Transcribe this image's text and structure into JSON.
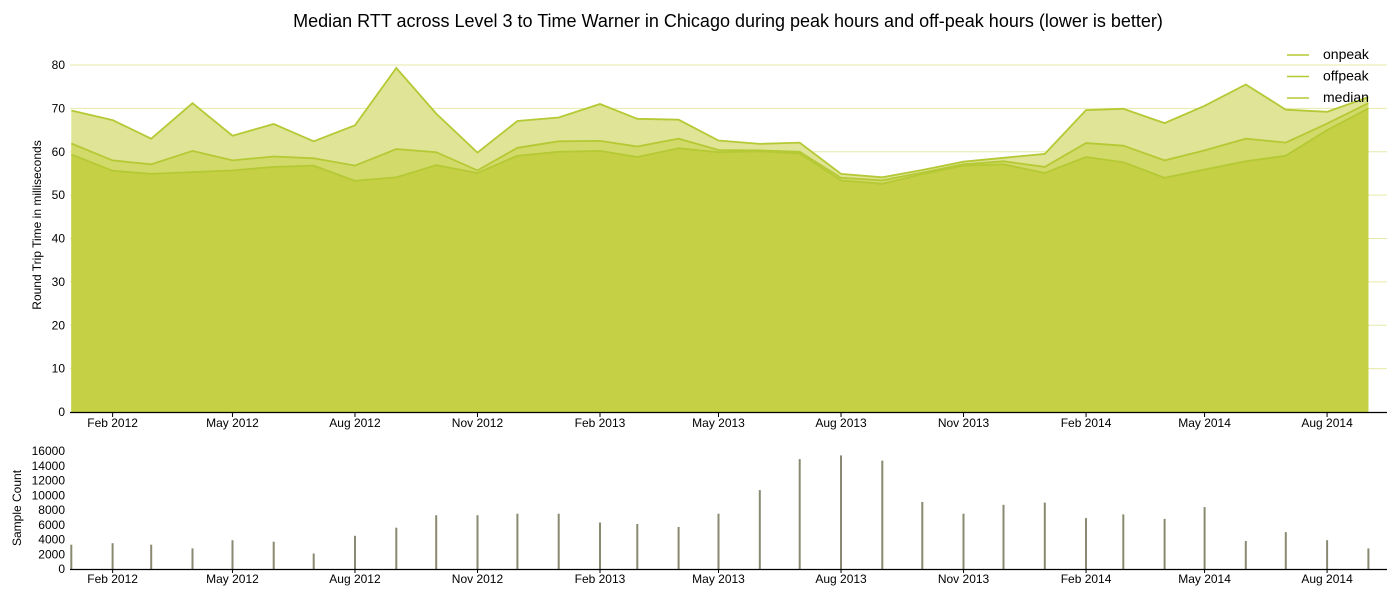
{
  "colors": {
    "onpeak_fill": "#dfe496",
    "offpeak_fill": "#d2da6a",
    "median_fill": "#c5d044",
    "line": "#b5c934",
    "grid": "#e6eaa8",
    "axis": "#000000",
    "bar": "#8a8a72"
  },
  "chart_data": [
    {
      "type": "area",
      "title": "Median RTT across Level 3 to Time Warner in Chicago during peak hours and off-peak hours (lower is better)",
      "ylabel": "Round Trip Time in milliseconds",
      "xlabel": "",
      "ylim": [
        0,
        80
      ],
      "yticks": [
        0,
        10,
        20,
        30,
        40,
        50,
        60,
        70,
        80
      ],
      "xlim": [
        "2011-12-31",
        "2014-09-15"
      ],
      "xticks": [
        {
          "date": "2012-02-01",
          "label": "Feb 2012"
        },
        {
          "date": "2012-05-01",
          "label": "May 2012"
        },
        {
          "date": "2012-08-01",
          "label": "Aug 2012"
        },
        {
          "date": "2012-11-01",
          "label": "Nov 2012"
        },
        {
          "date": "2013-02-01",
          "label": "Feb 2013"
        },
        {
          "date": "2013-05-01",
          "label": "May 2013"
        },
        {
          "date": "2013-08-01",
          "label": "Aug 2013"
        },
        {
          "date": "2013-11-01",
          "label": "Nov 2013"
        },
        {
          "date": "2014-02-01",
          "label": "Feb 2014"
        },
        {
          "date": "2014-05-01",
          "label": "May 2014"
        },
        {
          "date": "2014-08-01",
          "label": "Aug 2014"
        }
      ],
      "grid": true,
      "legend_position": "top-right",
      "x": [
        "2012-01-01",
        "2012-02-01",
        "2012-03-01",
        "2012-04-01",
        "2012-05-01",
        "2012-06-01",
        "2012-07-01",
        "2012-08-01",
        "2012-09-01",
        "2012-10-01",
        "2012-11-01",
        "2012-12-01",
        "2013-01-01",
        "2013-02-01",
        "2013-03-01",
        "2013-04-01",
        "2013-05-01",
        "2013-06-01",
        "2013-07-01",
        "2013-08-01",
        "2013-09-01",
        "2013-10-01",
        "2013-11-01",
        "2013-12-01",
        "2014-01-01",
        "2014-02-01",
        "2014-03-01",
        "2014-04-01",
        "2014-05-01",
        "2014-06-01",
        "2014-07-01",
        "2014-08-01",
        "2014-09-01"
      ],
      "series": [
        {
          "name": "onpeak",
          "values": [
            69.5,
            67.3,
            63.0,
            71.2,
            63.7,
            66.4,
            62.4,
            66.1,
            79.3,
            68.8,
            59.8,
            67.1,
            67.9,
            71.0,
            67.6,
            67.4,
            62.6,
            61.8,
            62.1,
            54.9,
            54.1,
            55.8,
            57.7,
            58.6,
            59.5,
            69.6,
            69.9,
            66.6,
            70.6,
            75.5,
            69.7,
            69.2,
            72.6
          ]
        },
        {
          "name": "offpeak",
          "values": [
            61.9,
            58.0,
            57.1,
            60.2,
            58.0,
            58.9,
            58.5,
            56.8,
            60.6,
            59.9,
            55.7,
            60.9,
            62.4,
            62.5,
            61.2,
            63.0,
            60.4,
            60.3,
            60.0,
            54.0,
            53.4,
            55.2,
            57.1,
            57.8,
            56.5,
            62.0,
            61.4,
            58.0,
            60.3,
            63.0,
            62.1,
            66.5,
            71.2
          ]
        },
        {
          "name": "median",
          "values": [
            59.4,
            55.6,
            54.9,
            55.3,
            55.7,
            56.5,
            56.8,
            53.3,
            54.1,
            56.9,
            55.1,
            59.1,
            60.0,
            60.2,
            58.8,
            60.8,
            59.9,
            60.1,
            59.6,
            53.4,
            52.6,
            54.8,
            56.8,
            57.1,
            55.1,
            58.8,
            57.6,
            54.0,
            55.9,
            57.8,
            59.1,
            65.0,
            70.0
          ]
        }
      ]
    },
    {
      "type": "bar",
      "ylabel": "Sample Count",
      "xlabel": "",
      "ylim": [
        0,
        16000
      ],
      "yticks": [
        0,
        2000,
        4000,
        6000,
        8000,
        10000,
        12000,
        14000,
        16000
      ],
      "x": [
        "2012-01-01",
        "2012-02-01",
        "2012-03-01",
        "2012-04-01",
        "2012-05-01",
        "2012-06-01",
        "2012-07-01",
        "2012-08-01",
        "2012-09-01",
        "2012-10-01",
        "2012-11-01",
        "2012-12-01",
        "2013-01-01",
        "2013-02-01",
        "2013-03-01",
        "2013-04-01",
        "2013-05-01",
        "2013-06-01",
        "2013-07-01",
        "2013-08-01",
        "2013-09-01",
        "2013-10-01",
        "2013-11-01",
        "2013-12-01",
        "2014-01-01",
        "2014-02-01",
        "2014-03-01",
        "2014-04-01",
        "2014-05-01",
        "2014-06-01",
        "2014-07-01",
        "2014-08-01",
        "2014-09-01"
      ],
      "values": [
        3300,
        3500,
        3300,
        2800,
        3900,
        3700,
        2100,
        4500,
        5600,
        7300,
        7300,
        7500,
        7500,
        6300,
        6100,
        5700,
        7500,
        10700,
        14900,
        15400,
        14700,
        9100,
        7500,
        8700,
        9000,
        6900,
        7400,
        6800,
        8400,
        3800,
        5000,
        3900,
        2800
      ]
    }
  ]
}
